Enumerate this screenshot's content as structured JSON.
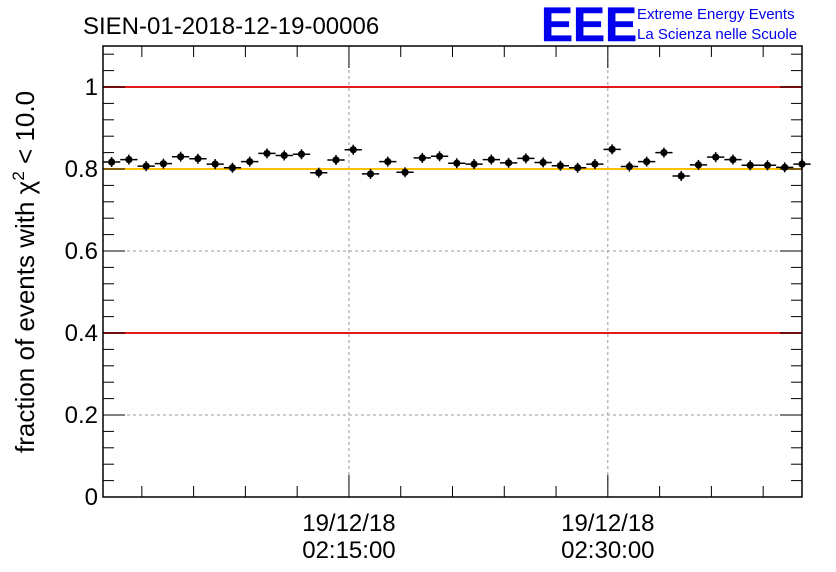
{
  "chart_data": {
    "type": "scatter",
    "title": "SIEN-01-2018-12-19-00006",
    "ylabel_prefix": "fraction of events with ",
    "ylabel_chi": "χ",
    "ylabel_sup": "2",
    "ylabel_suffix": " < 10.0",
    "xlabel": "",
    "ylim": [
      0,
      1.1
    ],
    "yticks": [
      "0",
      "0.2",
      "0.4",
      "0.6",
      "0.8",
      "1"
    ],
    "ytick_values": [
      0,
      0.2,
      0.4,
      0.6,
      0.8,
      1.0
    ],
    "xlim_minutes": [
      0,
      40.5
    ],
    "xtick_minutes": [
      14.25,
      29.25
    ],
    "xtick_labels": [
      {
        "date": "19/12/18",
        "time": "02:15:00"
      },
      {
        "date": "19/12/18",
        "time": "02:30:00"
      }
    ],
    "reference_lines": [
      {
        "value": 1.0,
        "color": "#e31a1c"
      },
      {
        "value": 0.4,
        "color": "#e31a1c"
      },
      {
        "value": 0.8,
        "color": "#ffc000"
      }
    ],
    "grid": true,
    "bin_width_minutes": 1.0,
    "series": [
      {
        "name": "fraction",
        "values": [
          0.817,
          0.823,
          0.807,
          0.813,
          0.83,
          0.825,
          0.812,
          0.803,
          0.818,
          0.838,
          0.833,
          0.836,
          0.791,
          0.822,
          0.847,
          0.788,
          0.818,
          0.792,
          0.827,
          0.831,
          0.814,
          0.812,
          0.823,
          0.815,
          0.826,
          0.816,
          0.808,
          0.803,
          0.812,
          0.848,
          0.806,
          0.818,
          0.84,
          0.783,
          0.81,
          0.829,
          0.823,
          0.809,
          0.809,
          0.804,
          0.812
        ]
      }
    ]
  },
  "logo": {
    "letters": "EEE",
    "line1": "Extreme Energy Events",
    "line2": "La Scienza nelle Scuole",
    "color": "#0000ee"
  }
}
